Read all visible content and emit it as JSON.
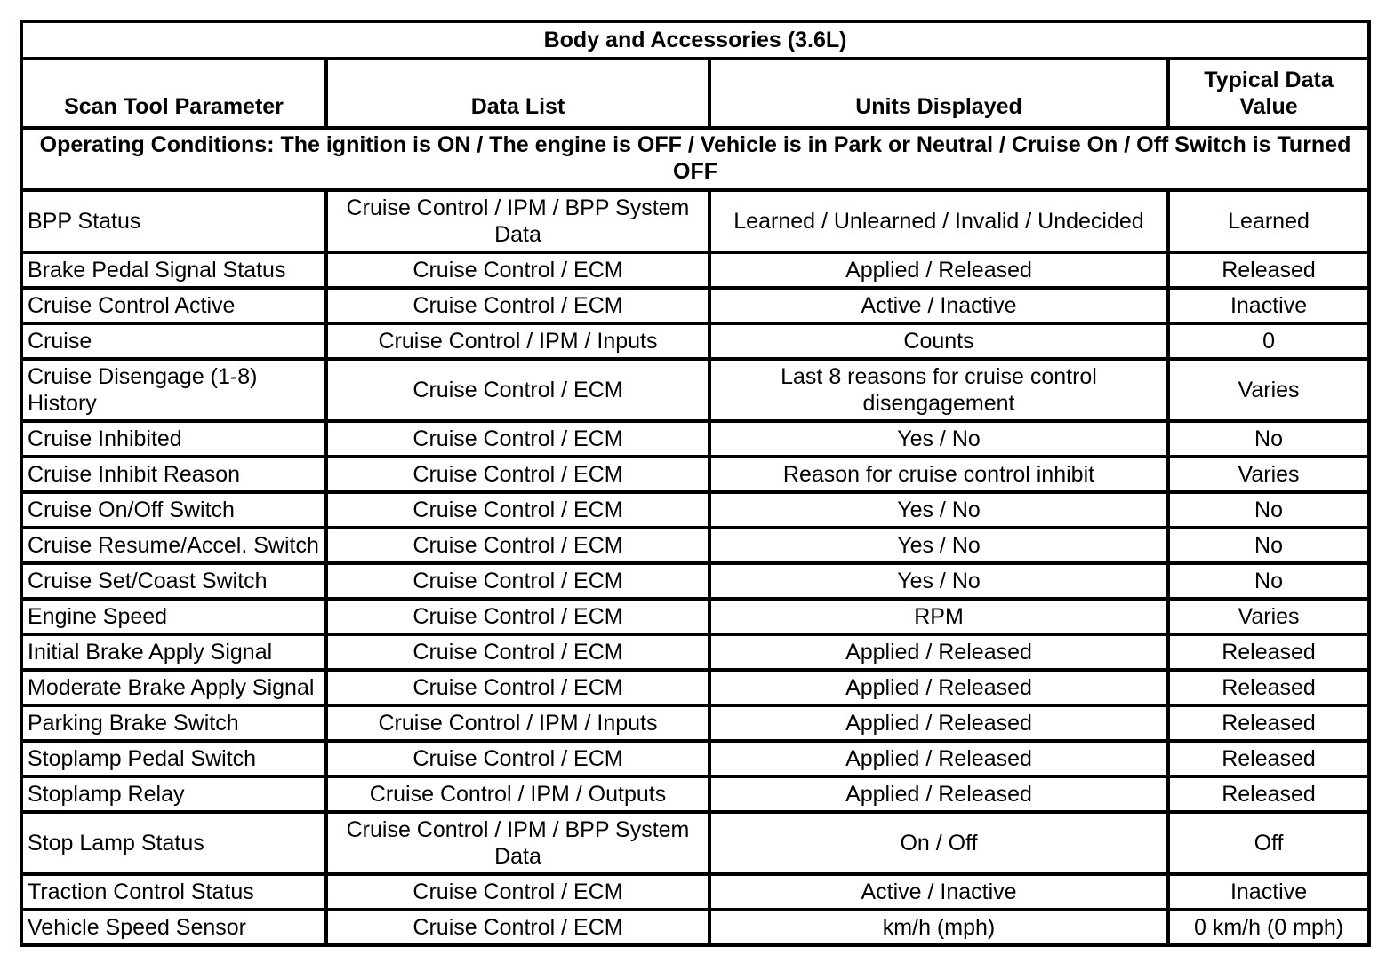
{
  "table": {
    "title": "Body and Accessories (3.6L)",
    "columns": {
      "parameter": "Scan Tool Parameter",
      "data_list": "Data List",
      "units": "Units Displayed",
      "typical": "Typical Data Value"
    },
    "operating_conditions": "Operating Conditions: The ignition is ON / The engine is OFF / Vehicle is in Park or Neutral / Cruise On / Off Switch is Turned OFF",
    "rows": [
      {
        "parameter": "BPP Status",
        "data_list": "Cruise Control / IPM / BPP System Data",
        "units": "Learned / Unlearned / Invalid / Undecided",
        "typical": "Learned"
      },
      {
        "parameter": "Brake Pedal Signal Status",
        "data_list": "Cruise Control / ECM",
        "units": "Applied / Released",
        "typical": "Released"
      },
      {
        "parameter": "Cruise Control Active",
        "data_list": "Cruise Control / ECM",
        "units": "Active / Inactive",
        "typical": "Inactive"
      },
      {
        "parameter": "Cruise",
        "data_list": "Cruise Control / IPM / Inputs",
        "units": "Counts",
        "typical": "0"
      },
      {
        "parameter": "Cruise Disengage (1-8) History",
        "data_list": "Cruise Control / ECM",
        "units": "Last 8 reasons for cruise control disengagement",
        "typical": "Varies"
      },
      {
        "parameter": "Cruise Inhibited",
        "data_list": "Cruise Control / ECM",
        "units": "Yes / No",
        "typical": "No"
      },
      {
        "parameter": "Cruise Inhibit Reason",
        "data_list": "Cruise Control / ECM",
        "units": "Reason for cruise control inhibit",
        "typical": "Varies"
      },
      {
        "parameter": "Cruise On/Off Switch",
        "data_list": "Cruise Control / ECM",
        "units": "Yes / No",
        "typical": "No"
      },
      {
        "parameter": "Cruise Resume/Accel. Switch",
        "data_list": "Cruise Control / ECM",
        "units": "Yes / No",
        "typical": "No"
      },
      {
        "parameter": "Cruise Set/Coast Switch",
        "data_list": "Cruise Control / ECM",
        "units": "Yes / No",
        "typical": "No"
      },
      {
        "parameter": "Engine Speed",
        "data_list": "Cruise Control / ECM",
        "units": "RPM",
        "typical": "Varies"
      },
      {
        "parameter": "Initial Brake Apply Signal",
        "data_list": "Cruise Control / ECM",
        "units": "Applied / Released",
        "typical": "Released"
      },
      {
        "parameter": "Moderate Brake Apply Signal",
        "data_list": "Cruise Control / ECM",
        "units": "Applied / Released",
        "typical": "Released"
      },
      {
        "parameter": "Parking Brake Switch",
        "data_list": "Cruise Control / IPM / Inputs",
        "units": "Applied / Released",
        "typical": "Released"
      },
      {
        "parameter": "Stoplamp Pedal Switch",
        "data_list": "Cruise Control / ECM",
        "units": "Applied / Released",
        "typical": "Released"
      },
      {
        "parameter": "Stoplamp Relay",
        "data_list": "Cruise Control / IPM / Outputs",
        "units": "Applied / Released",
        "typical": "Released"
      },
      {
        "parameter": "Stop Lamp Status",
        "data_list": "Cruise Control / IPM / BPP System Data",
        "units": "On / Off",
        "typical": "Off"
      },
      {
        "parameter": "Traction Control Status",
        "data_list": "Cruise Control / ECM",
        "units": "Active / Inactive",
        "typical": "Inactive"
      },
      {
        "parameter": "Vehicle Speed Sensor",
        "data_list": "Cruise Control / ECM",
        "units": "km/h (mph)",
        "typical": "0 km/h (0 mph)"
      }
    ]
  }
}
